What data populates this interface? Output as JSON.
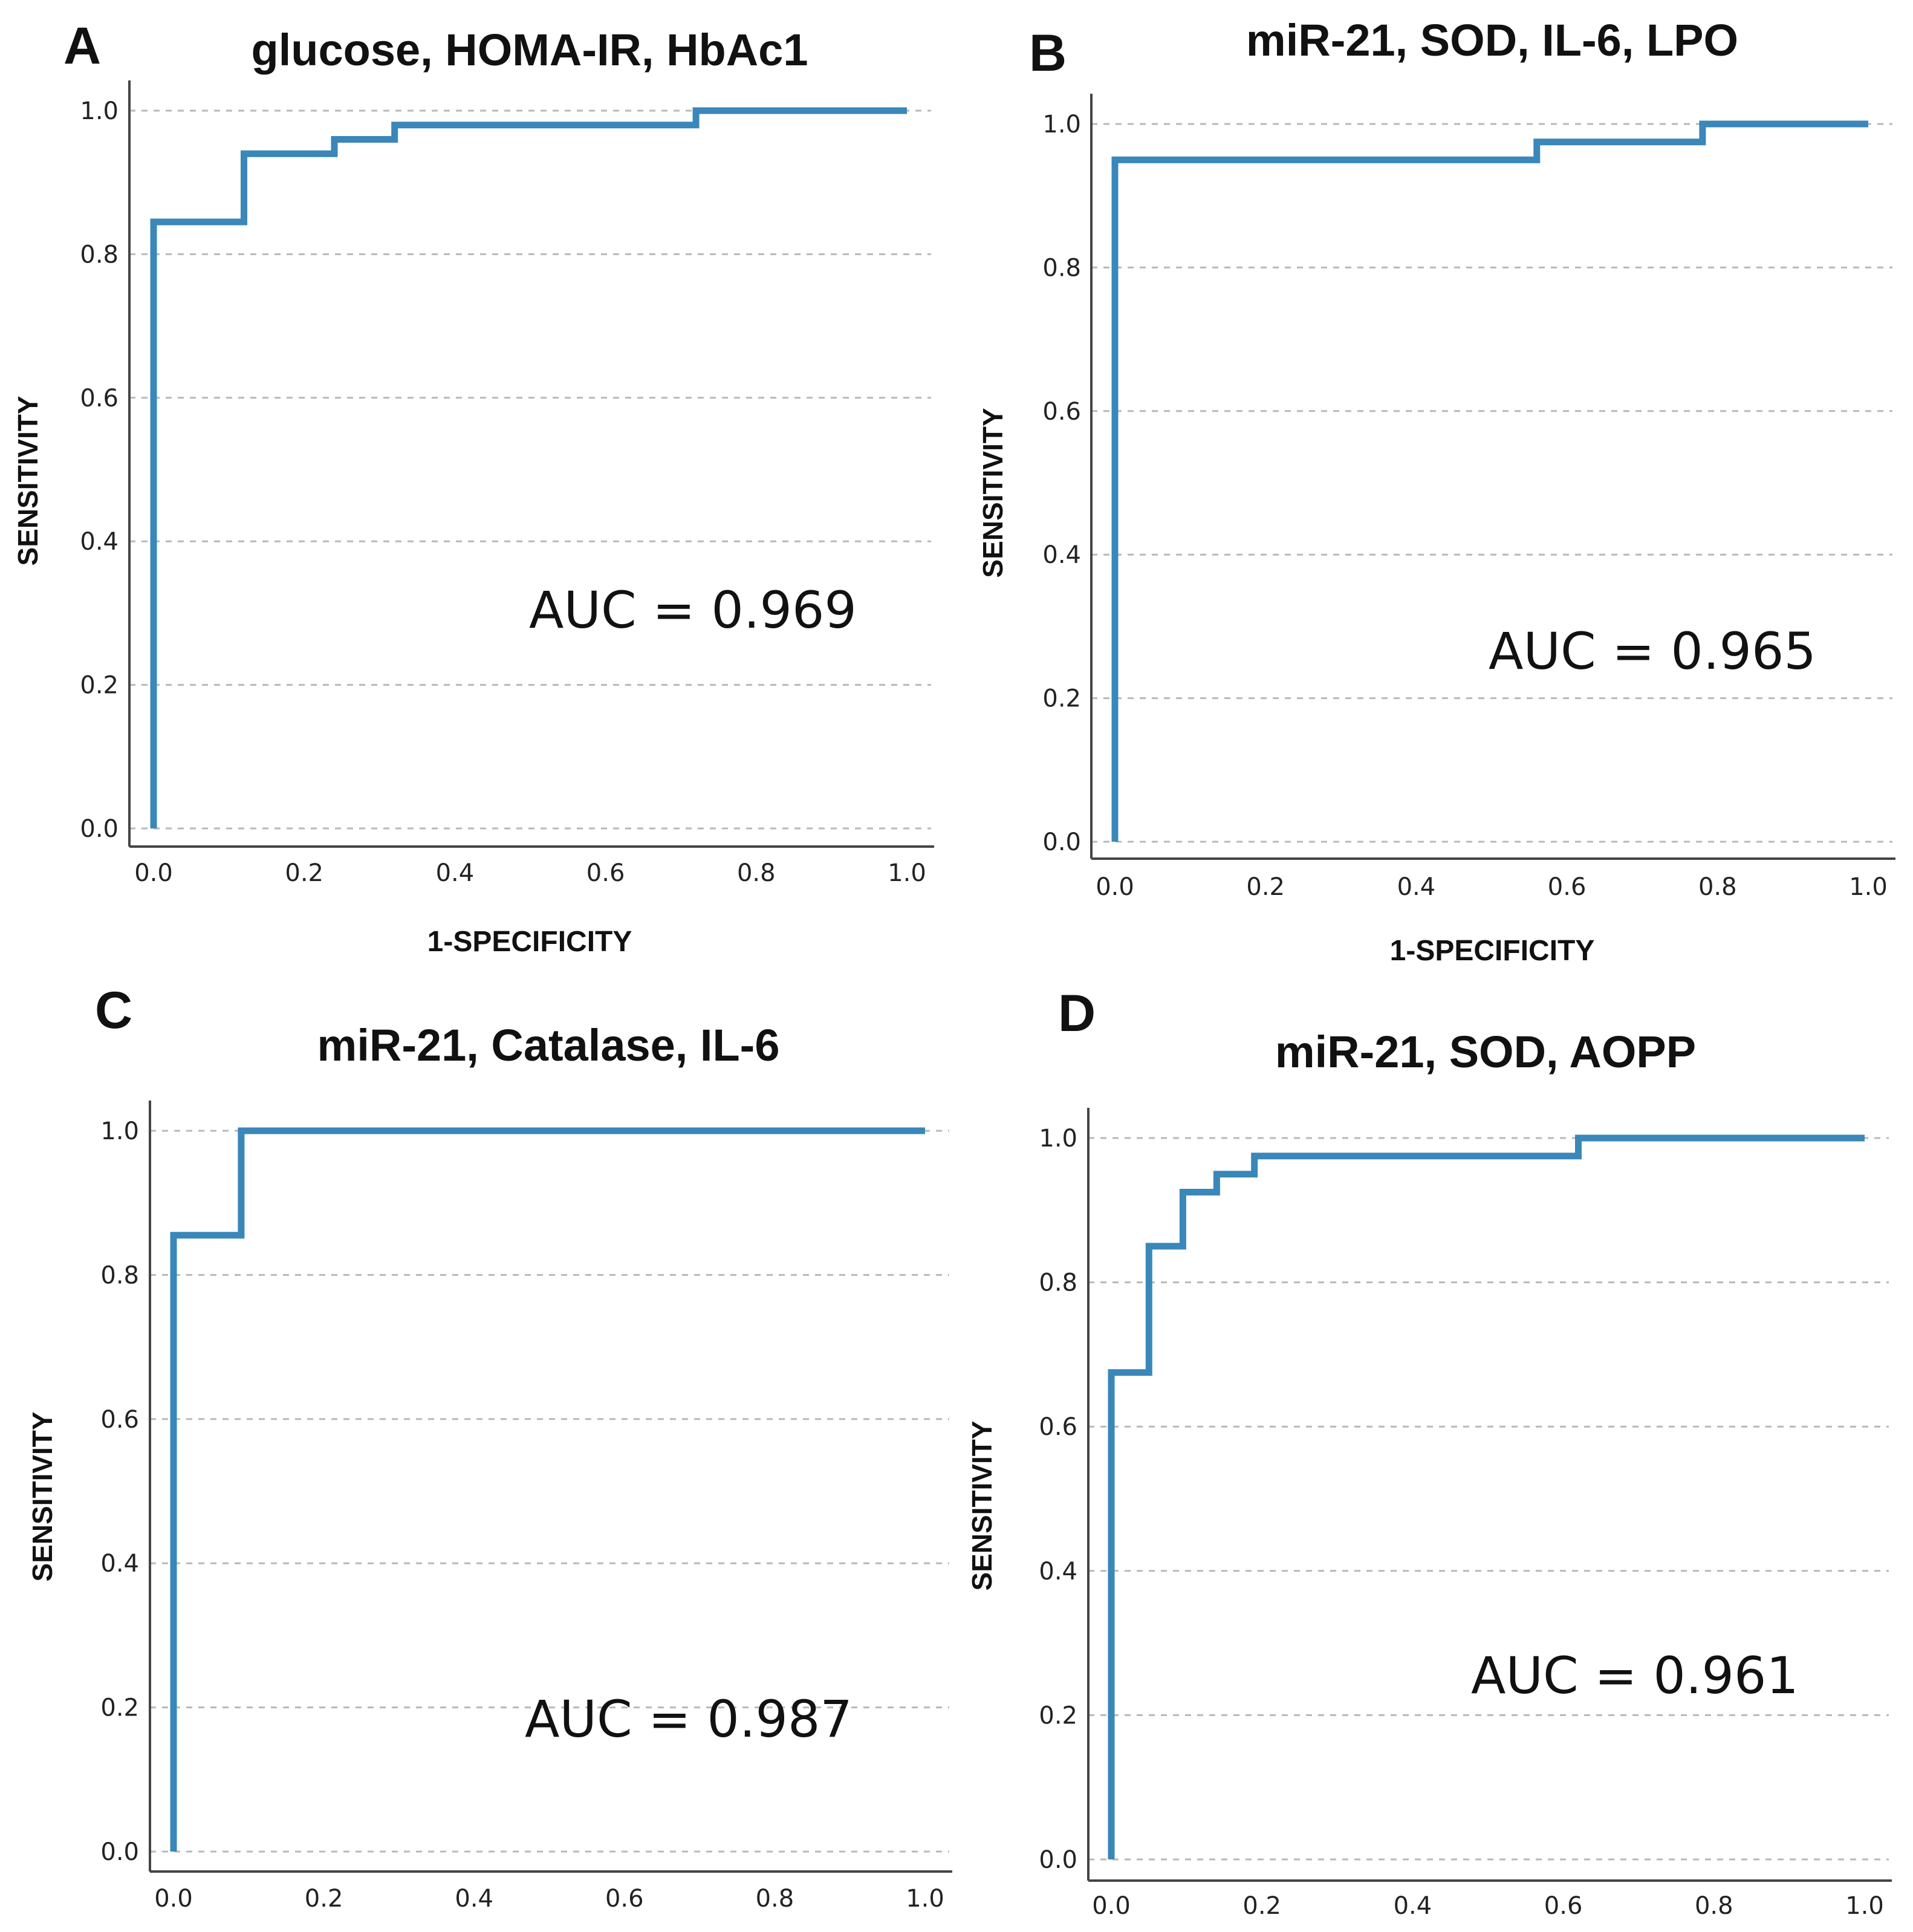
{
  "colors": {
    "roc_line": "#3a87b9",
    "grid": "#b8b8b8",
    "axis": "#444444",
    "text": "#111111"
  },
  "chart_data": [
    {
      "type": "line",
      "panel": "A",
      "title": "glucose, HOMA-IR, HbAc1",
      "xlabel": "1-SPECIFICITY",
      "ylabel": "SENSITIVITY",
      "xlim": [
        0,
        1
      ],
      "ylim": [
        0,
        1
      ],
      "xticks": [
        "0.0",
        "0.2",
        "0.4",
        "0.6",
        "0.8",
        "1.0"
      ],
      "yticks": [
        "0.0",
        "0.2",
        "0.4",
        "0.6",
        "0.8",
        "1.0"
      ],
      "grid": true,
      "annotation": "AUC = 0.969",
      "series": [
        {
          "name": "ROC",
          "x": [
            0,
            0,
            0.12,
            0.12,
            0.24,
            0.24,
            0.32,
            0.32,
            0.72,
            0.72,
            1.0
          ],
          "y": [
            0,
            0.845,
            0.845,
            0.94,
            0.94,
            0.96,
            0.96,
            0.98,
            0.98,
            1.0,
            1.0
          ]
        }
      ]
    },
    {
      "type": "line",
      "panel": "B",
      "title": "miR-21, SOD, IL-6, LPO",
      "xlabel": "1-SPECIFICITY",
      "ylabel": "SENSITIVITY",
      "xlim": [
        0,
        1
      ],
      "ylim": [
        0,
        1
      ],
      "xticks": [
        "0.0",
        "0.2",
        "0.4",
        "0.6",
        "0.8",
        "1.0"
      ],
      "yticks": [
        "0.0",
        "0.2",
        "0.4",
        "0.6",
        "0.8",
        "1.0"
      ],
      "grid": true,
      "annotation": "AUC = 0.965",
      "series": [
        {
          "name": "ROC",
          "x": [
            0,
            0,
            0.56,
            0.56,
            0.78,
            0.78,
            1.0
          ],
          "y": [
            0,
            0.95,
            0.95,
            0.975,
            0.975,
            1.0,
            1.0
          ]
        }
      ]
    },
    {
      "type": "line",
      "panel": "C",
      "title": "miR-21, Catalase, IL-6",
      "xlabel": "",
      "ylabel": "SENSITIVITY",
      "xlim": [
        0,
        1
      ],
      "ylim": [
        0,
        1
      ],
      "xticks": [
        "0.0",
        "0.2",
        "0.4",
        "0.6",
        "0.8",
        "1.0"
      ],
      "yticks": [
        "0.0",
        "0.2",
        "0.4",
        "0.6",
        "0.8",
        "1.0"
      ],
      "grid": true,
      "annotation": "AUC = 0.987",
      "series": [
        {
          "name": "ROC",
          "x": [
            0,
            0,
            0.09,
            0.09,
            1.0
          ],
          "y": [
            0,
            0.855,
            0.855,
            1.0,
            1.0
          ]
        }
      ]
    },
    {
      "type": "line",
      "panel": "D",
      "title": "miR-21, SOD, AOPP",
      "xlabel": "",
      "ylabel": "SENSITIVITY",
      "xlim": [
        0,
        1
      ],
      "ylim": [
        0,
        1
      ],
      "xticks": [
        "0.0",
        "0.2",
        "0.4",
        "0.6",
        "0.8",
        "1.0"
      ],
      "yticks": [
        "0.0",
        "0.2",
        "0.4",
        "0.6",
        "0.8",
        "1.0"
      ],
      "grid": true,
      "annotation": "AUC = 0.961",
      "series": [
        {
          "name": "ROC",
          "x": [
            0,
            0,
            0.05,
            0.05,
            0.095,
            0.095,
            0.14,
            0.14,
            0.19,
            0.19,
            0.62,
            0.62,
            1.0
          ],
          "y": [
            0,
            0.675,
            0.675,
            0.85,
            0.85,
            0.925,
            0.925,
            0.95,
            0.95,
            0.975,
            0.975,
            1.0,
            1.0
          ]
        }
      ]
    }
  ]
}
